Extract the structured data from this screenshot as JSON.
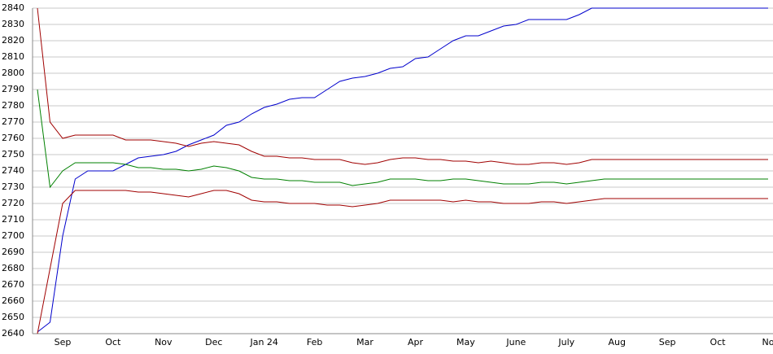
{
  "chart_data": {
    "type": "line",
    "categories": [
      null,
      null,
      "Sep",
      null,
      null,
      null,
      "Oct",
      null,
      null,
      null,
      "Nov",
      null,
      null,
      null,
      "Dec",
      null,
      null,
      null,
      "Jan 24",
      null,
      null,
      null,
      "Feb",
      null,
      null,
      null,
      "Mar",
      null,
      null,
      null,
      "Apr",
      null,
      null,
      null,
      "May",
      null,
      null,
      null,
      "June",
      null,
      null,
      null,
      "July",
      null,
      null,
      null,
      "Aug",
      null,
      null,
      null,
      "Sep",
      null,
      null,
      null,
      "Oct",
      null,
      null,
      null,
      "No"
    ],
    "series": [
      {
        "color": "#0000cc",
        "values": [
          2641,
          2647,
          2700,
          2735,
          2740,
          2740,
          2740,
          2744,
          2748,
          2749,
          2750,
          2752,
          2756,
          2759,
          2762,
          2768,
          2770,
          2775,
          2779,
          2781,
          2784,
          2785,
          2785,
          2790,
          2795,
          2797,
          2798,
          2800,
          2803,
          2804,
          2809,
          2810,
          2815,
          2820,
          2823,
          2823,
          2826,
          2829,
          2830,
          2833,
          2833,
          2833,
          2833,
          2836,
          2840,
          2840,
          2840,
          2840,
          2840,
          2840,
          2840,
          2840,
          2840,
          2840,
          2840,
          2840,
          2840,
          2840,
          2840
        ]
      },
      {
        "color": "#a00000",
        "values": [
          2840,
          2770,
          2760,
          2762,
          2762,
          2762,
          2762,
          2759,
          2759,
          2759,
          2758,
          2757,
          2755,
          2757,
          2758,
          2757,
          2756,
          2752,
          2749,
          2749,
          2748,
          2748,
          2747,
          2747,
          2747,
          2745,
          2744,
          2745,
          2747,
          2748,
          2748,
          2747,
          2747,
          2746,
          2746,
          2745,
          2746,
          2745,
          2744,
          2744,
          2745,
          2745,
          2744,
          2745,
          2747,
          2747,
          2747,
          2747,
          2747,
          2747,
          2747,
          2747,
          2747,
          2747,
          2747,
          2747,
          2747,
          2747,
          2747
        ]
      },
      {
        "color": "#008000",
        "values": [
          2790,
          2730,
          2740,
          2745,
          2745,
          2745,
          2745,
          2744,
          2742,
          2742,
          2741,
          2741,
          2740,
          2741,
          2743,
          2742,
          2740,
          2736,
          2735,
          2735,
          2734,
          2734,
          2733,
          2733,
          2733,
          2731,
          2732,
          2733,
          2735,
          2735,
          2735,
          2734,
          2734,
          2735,
          2735,
          2734,
          2733,
          2732,
          2732,
          2732,
          2733,
          2733,
          2732,
          2733,
          2734,
          2735,
          2735,
          2735,
          2735,
          2735,
          2735,
          2735,
          2735,
          2735,
          2735,
          2735,
          2735,
          2735,
          2735
        ]
      },
      {
        "color": "#a00000",
        "values": [
          2640,
          2680,
          2720,
          2728,
          2728,
          2728,
          2728,
          2728,
          2727,
          2727,
          2726,
          2725,
          2724,
          2726,
          2728,
          2728,
          2726,
          2722,
          2721,
          2721,
          2720,
          2720,
          2720,
          2719,
          2719,
          2718,
          2719,
          2720,
          2722,
          2722,
          2722,
          2722,
          2722,
          2721,
          2722,
          2721,
          2721,
          2720,
          2720,
          2720,
          2721,
          2721,
          2720,
          2721,
          2722,
          2723,
          2723,
          2723,
          2723,
          2723,
          2723,
          2723,
          2723,
          2723,
          2723,
          2723,
          2723,
          2723,
          2723
        ]
      }
    ],
    "ylim": [
      2640,
      2840
    ],
    "yticks": [
      2640,
      2650,
      2660,
      2670,
      2680,
      2690,
      2700,
      2710,
      2720,
      2730,
      2740,
      2750,
      2760,
      2770,
      2780,
      2790,
      2800,
      2810,
      2820,
      2830,
      2840
    ],
    "grid": true
  }
}
